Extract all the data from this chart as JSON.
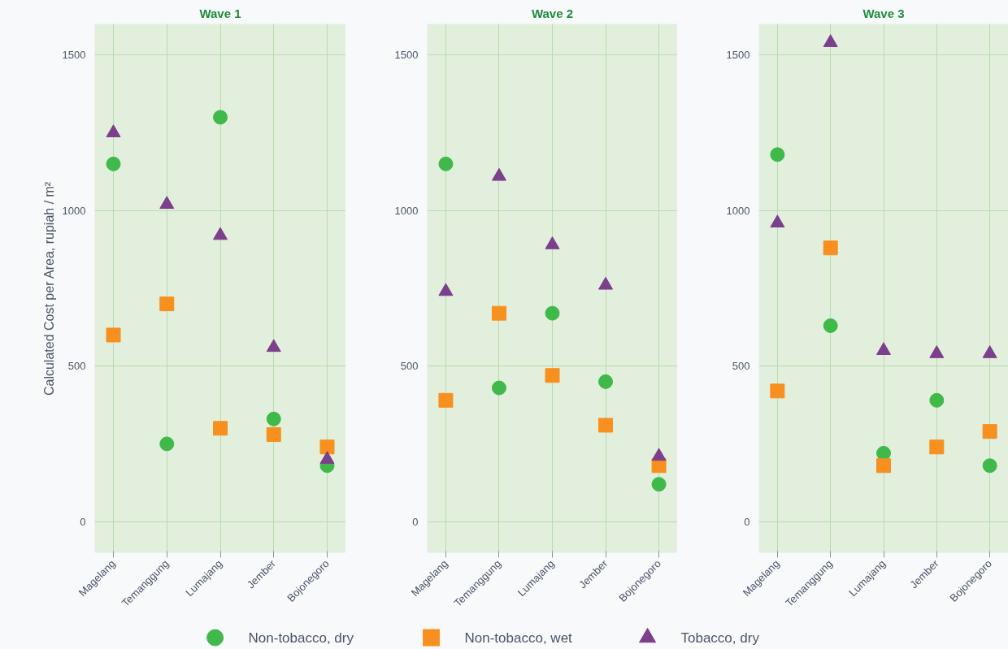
{
  "chart_data": [
    {
      "type": "scatter",
      "title": "Wave 1",
      "ylabel": "Calculated Cost per Area, rupiah / m²",
      "categories": [
        "Magelang",
        "Temanggung",
        "Lumajang",
        "Jember",
        "Bojonegoro"
      ],
      "ylim": [
        -100,
        1600
      ],
      "yticks": [
        0,
        500,
        1000,
        1500
      ],
      "grid": true,
      "legend": "bottom",
      "series": [
        {
          "name": "Non-tobacco, dry",
          "color": "#3fb94a",
          "marker": "circle",
          "values": [
            1150,
            250,
            1300,
            330,
            180
          ]
        },
        {
          "name": "Non-tobacco, wet",
          "color": "#f7901e",
          "marker": "square",
          "values": [
            600,
            700,
            300,
            280,
            240
          ]
        },
        {
          "name": "Tobacco, dry",
          "color": "#7b3f8c",
          "marker": "triangle",
          "values": [
            1250,
            1020,
            920,
            560,
            200
          ]
        }
      ]
    },
    {
      "type": "scatter",
      "title": "Wave 2",
      "categories": [
        "Magelang",
        "Temanggung",
        "Lumajang",
        "Jember",
        "Bojonegoro"
      ],
      "ylim": [
        -100,
        1600
      ],
      "yticks": [
        0,
        500,
        1000,
        1500
      ],
      "grid": true,
      "series": [
        {
          "color": "#3fb94a",
          "marker": "circle",
          "values": [
            1150,
            430,
            670,
            450,
            120
          ]
        },
        {
          "color": "#f7901e",
          "marker": "square",
          "values": [
            390,
            670,
            470,
            310,
            180
          ]
        },
        {
          "color": "#7b3f8c",
          "marker": "triangle",
          "values": [
            740,
            1110,
            890,
            760,
            210
          ]
        }
      ]
    },
    {
      "type": "scatter",
      "title": "Wave 3",
      "categories": [
        "Magelang",
        "Temanggung",
        "Lumajang",
        "Jember",
        "Bojonegoro"
      ],
      "ylim": [
        -100,
        1600
      ],
      "yticks": [
        0,
        500,
        1000,
        1500
      ],
      "grid": true,
      "series": [
        {
          "color": "#3fb94a",
          "marker": "circle",
          "values": [
            1180,
            630,
            220,
            390,
            180
          ]
        },
        {
          "color": "#f7901e",
          "marker": "square",
          "values": [
            420,
            880,
            180,
            240,
            290
          ]
        },
        {
          "color": "#7b3f8c",
          "marker": "triangle",
          "values": [
            960,
            1540,
            550,
            540,
            540
          ]
        }
      ]
    }
  ]
}
